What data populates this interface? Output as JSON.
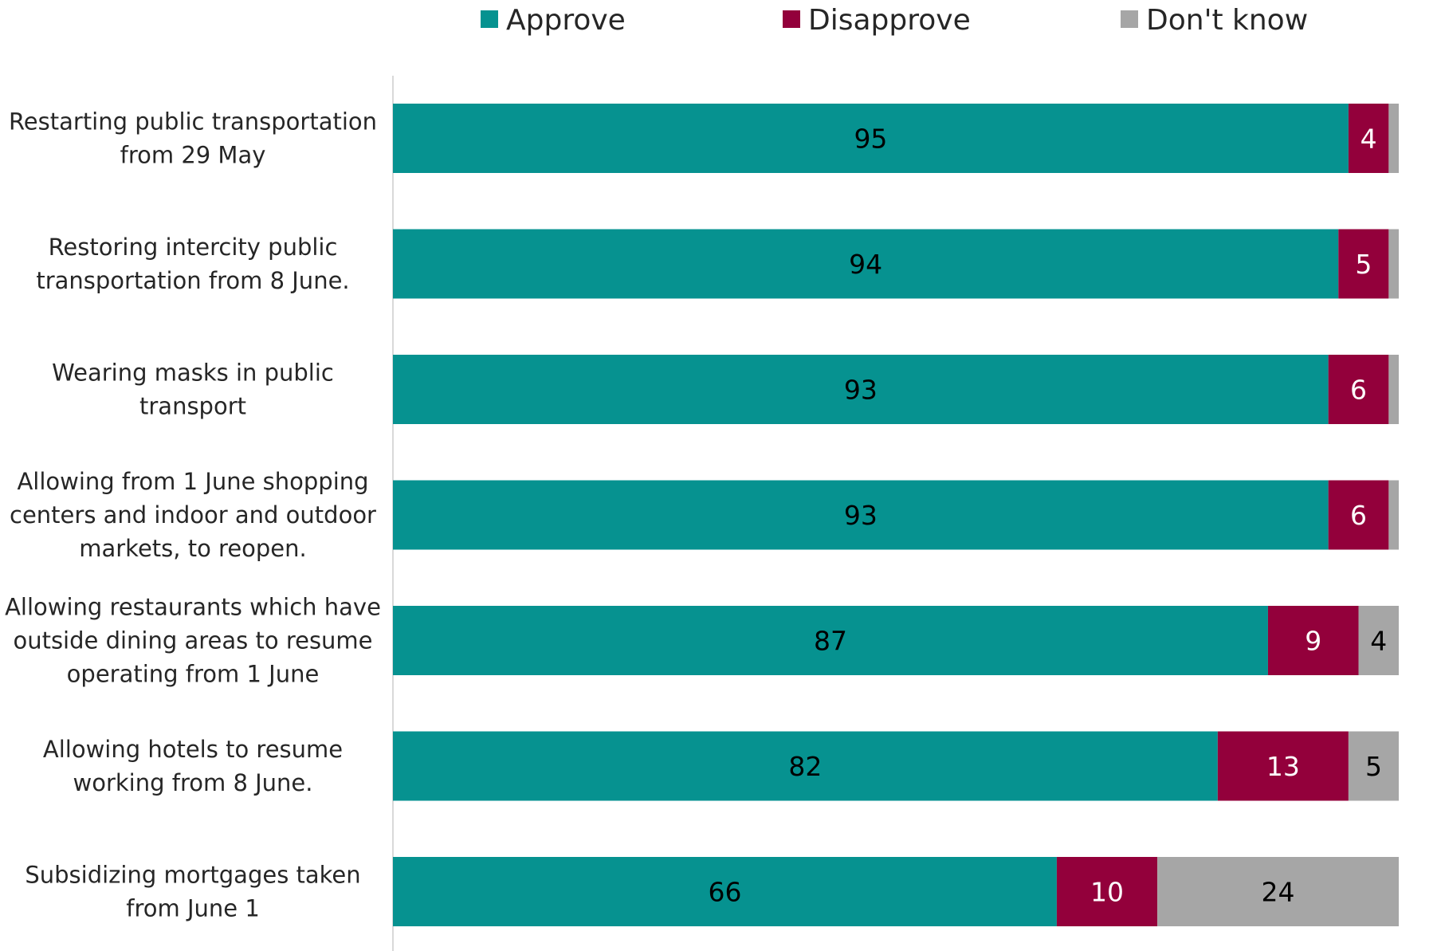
{
  "chart_data": {
    "type": "bar",
    "orientation": "horizontal",
    "stacked": true,
    "legend_position": "top",
    "grid": false,
    "xlim": [
      0,
      100
    ],
    "categories": [
      "Restarting public transportation from 29 May",
      "Restoring intercity public transportation from 8 June.",
      "Wearing masks in public transport",
      "Allowing from 1 June shopping centers and indoor and outdoor markets, to reopen.",
      "Allowing restaurants which have outside dining areas to resume operating from 1 June",
      "Allowing hotels to resume working from 8 June.",
      "Subsidizing mortgages taken from June 1"
    ],
    "category_lines": [
      [
        "Restarting public transportation",
        "from 29 May"
      ],
      [
        "Restoring intercity public",
        "transportation from 8 June."
      ],
      [
        "Wearing masks in public",
        "transport"
      ],
      [
        "Allowing from 1 June shopping",
        "centers and indoor and outdoor",
        "markets, to reopen."
      ],
      [
        "Allowing restaurants which have",
        "outside dining areas to resume",
        "operating from 1 June"
      ],
      [
        "Allowing hotels to resume",
        "working from 8 June."
      ],
      [
        "Subsidizing mortgages taken",
        "from June 1"
      ]
    ],
    "series": [
      {
        "name": "Approve",
        "color": "#069290",
        "label_color": "#000000",
        "values": [
          95,
          94,
          93,
          93,
          87,
          82,
          66
        ],
        "labels": [
          "95",
          "94",
          "93",
          "93",
          "87",
          "82",
          "66"
        ]
      },
      {
        "name": "Disapprove",
        "color": "#93003B",
        "label_color": "#ffffff",
        "values": [
          4,
          5,
          6,
          6,
          9,
          13,
          10
        ],
        "labels": [
          "4",
          "5",
          "6",
          "6",
          "9",
          "13",
          "10"
        ]
      },
      {
        "name": "Don't know",
        "color": "#A6A6A6",
        "label_color": "#000000",
        "values": [
          1,
          1,
          1,
          1,
          4,
          5,
          24
        ],
        "labels": [
          "",
          "",
          "",
          "",
          "4",
          "5",
          "24"
        ]
      }
    ]
  }
}
